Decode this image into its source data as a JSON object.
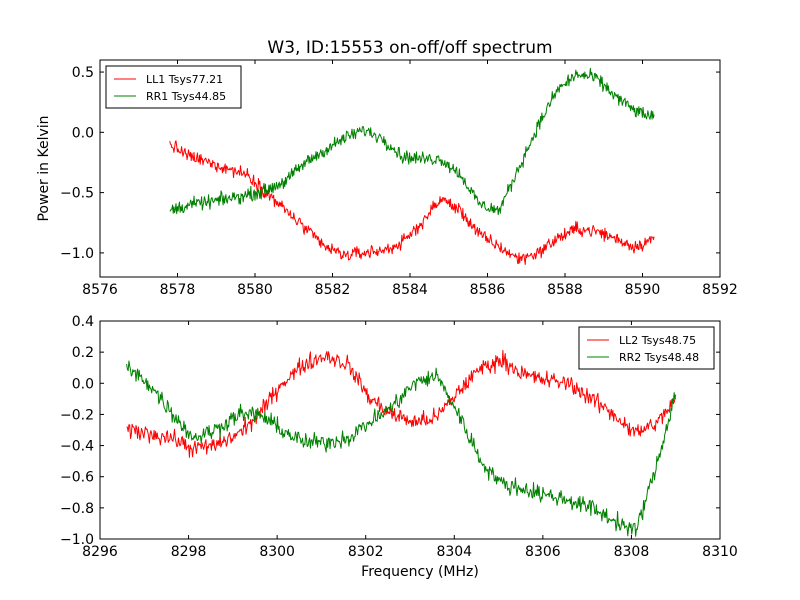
{
  "figure": {
    "title": "W3, ID:15553 on-off/off spectrum"
  },
  "chart_data": [
    {
      "type": "line",
      "ylabel": "Power in Kelvin",
      "xlabel": "",
      "xlim": [
        8576,
        8592
      ],
      "ylim": [
        -1.2,
        0.6
      ],
      "xticks": [
        8576,
        8578,
        8580,
        8582,
        8584,
        8586,
        8588,
        8590,
        8592
      ],
      "yticks": [
        0.5,
        0.0,
        -0.5,
        -1.0
      ],
      "xtick_labels": [
        "8576",
        "8578",
        "8580",
        "8582",
        "8584",
        "8586",
        "8588",
        "8590",
        "8592"
      ],
      "ytick_labels": [
        "0.5",
        "0.0",
        "−0.5",
        "−1.0"
      ],
      "grid": false,
      "legend": "top-left",
      "series": [
        {
          "name": "LL1 Tsys77.21",
          "color": "#ff0000",
          "x_range": [
            8577.8,
            8590.3
          ],
          "x": [
            8577.8,
            8578.3,
            8578.8,
            8579.3,
            8579.8,
            8580.3,
            8580.8,
            8581.3,
            8581.8,
            8582.3,
            8582.8,
            8583.3,
            8583.8,
            8584.3,
            8584.8,
            8585.3,
            8585.8,
            8586.3,
            8586.8,
            8587.3,
            8587.8,
            8588.3,
            8588.8,
            8589.3,
            8589.8,
            8590.3
          ],
          "y": [
            -0.1,
            -0.2,
            -0.25,
            -0.3,
            -0.35,
            -0.5,
            -0.65,
            -0.8,
            -0.95,
            -1.02,
            -1.0,
            -0.98,
            -0.92,
            -0.75,
            -0.55,
            -0.65,
            -0.85,
            -0.95,
            -1.05,
            -1.0,
            -0.88,
            -0.8,
            -0.82,
            -0.88,
            -0.95,
            -0.88
          ]
        },
        {
          "name": "RR1 Tsys44.85",
          "color": "#008000",
          "x_range": [
            8577.8,
            8590.3
          ],
          "x": [
            8577.8,
            8578.3,
            8578.8,
            8579.3,
            8579.8,
            8580.3,
            8580.8,
            8581.3,
            8581.8,
            8582.3,
            8582.8,
            8583.3,
            8583.8,
            8584.3,
            8584.8,
            8585.3,
            8585.8,
            8586.3,
            8586.8,
            8587.3,
            8587.8,
            8588.3,
            8588.8,
            8589.3,
            8589.8,
            8590.3
          ],
          "y": [
            -0.65,
            -0.6,
            -0.58,
            -0.55,
            -0.52,
            -0.48,
            -0.4,
            -0.25,
            -0.15,
            -0.05,
            0.02,
            -0.05,
            -0.2,
            -0.22,
            -0.22,
            -0.35,
            -0.6,
            -0.65,
            -0.3,
            0.05,
            0.35,
            0.48,
            0.45,
            0.3,
            0.18,
            0.12
          ]
        }
      ]
    },
    {
      "type": "line",
      "ylabel": "",
      "xlabel": "Frequency (MHz)",
      "xlim": [
        8296,
        8310
      ],
      "ylim": [
        -1.0,
        0.4
      ],
      "xticks": [
        8296,
        8298,
        8300,
        8302,
        8304,
        8306,
        8308,
        8310
      ],
      "yticks": [
        0.4,
        0.2,
        0.0,
        -0.2,
        -0.4,
        -0.6,
        -0.8,
        -1.0
      ],
      "xtick_labels": [
        "8296",
        "8298",
        "8300",
        "8302",
        "8304",
        "8306",
        "8308",
        "8310"
      ],
      "ytick_labels": [
        "0.4",
        "0.2",
        "0.0",
        "−0.2",
        "−0.4",
        "−0.6",
        "−0.8",
        "−1.0"
      ],
      "grid": false,
      "legend": "top-right",
      "series": [
        {
          "name": "LL2 Tsys48.75",
          "color": "#ff0000",
          "x_range": [
            8296.6,
            8309.0
          ],
          "x": [
            8296.6,
            8297.1,
            8297.6,
            8298.1,
            8298.6,
            8299.1,
            8299.6,
            8300.1,
            8300.6,
            8301.1,
            8301.6,
            8302.1,
            8302.6,
            8303.1,
            8303.6,
            8304.1,
            8304.6,
            8305.1,
            8305.6,
            8306.1,
            8306.6,
            8307.1,
            8307.6,
            8308.1,
            8308.6,
            8309.0
          ],
          "y": [
            -0.3,
            -0.32,
            -0.35,
            -0.42,
            -0.4,
            -0.33,
            -0.2,
            0.0,
            0.12,
            0.18,
            0.12,
            -0.1,
            -0.2,
            -0.25,
            -0.22,
            -0.05,
            0.1,
            0.15,
            0.05,
            0.02,
            0.0,
            -0.1,
            -0.2,
            -0.32,
            -0.25,
            -0.1
          ]
        },
        {
          "name": "RR2 Tsys48.48",
          "color": "#008000",
          "x_range": [
            8296.6,
            8309.0
          ],
          "x": [
            8296.6,
            8297.1,
            8297.6,
            8298.1,
            8298.6,
            8299.1,
            8299.6,
            8300.1,
            8300.6,
            8301.1,
            8301.6,
            8302.1,
            8302.6,
            8303.1,
            8303.6,
            8304.1,
            8304.6,
            8305.1,
            8305.6,
            8306.1,
            8306.6,
            8307.1,
            8307.6,
            8308.1,
            8308.6,
            8309.0
          ],
          "y": [
            0.1,
            0.0,
            -0.18,
            -0.35,
            -0.3,
            -0.2,
            -0.2,
            -0.3,
            -0.38,
            -0.38,
            -0.35,
            -0.25,
            -0.15,
            0.0,
            0.05,
            -0.2,
            -0.5,
            -0.65,
            -0.68,
            -0.72,
            -0.75,
            -0.8,
            -0.88,
            -0.95,
            -0.5,
            -0.05
          ]
        }
      ]
    }
  ]
}
